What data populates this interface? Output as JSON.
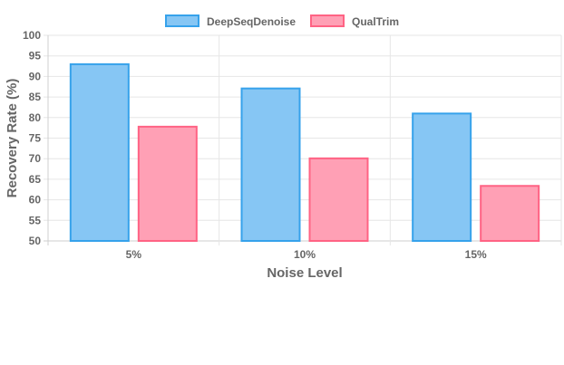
{
  "chart_data": {
    "type": "bar",
    "categories": [
      "5%",
      "10%",
      "15%"
    ],
    "series": [
      {
        "name": "DeepSeqDenoise",
        "values": [
          93.2,
          87.3,
          81.2
        ],
        "color": "#36a2eb",
        "fill": "#86c6f4"
      },
      {
        "name": "QualTrim",
        "values": [
          78.0,
          70.3,
          63.6
        ],
        "color": "#ff6384",
        "fill": "#ffa0b5"
      }
    ],
    "xlabel": "Noise Level",
    "ylabel": "Recovery Rate (%)",
    "ylim": [
      50,
      100
    ],
    "yticks": [
      50,
      55,
      60,
      65,
      70,
      75,
      80,
      85,
      90,
      95,
      100
    ],
    "grid": true,
    "legend": "top-center"
  }
}
